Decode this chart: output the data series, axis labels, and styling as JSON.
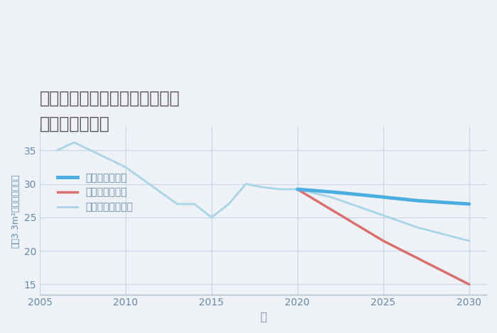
{
  "title_line1": "兵庫県姫路市白浜町宇佐崎北の",
  "title_line2": "土地の価格推移",
  "xlabel": "年",
  "ylabel": "坪（3.3m²）単価（万円）",
  "background_color": "#eef2f7",
  "plot_bg_color": "#eef2f7",
  "ylim": [
    13.5,
    38.5
  ],
  "xlim": [
    2005,
    2031
  ],
  "yticks": [
    15,
    20,
    25,
    30,
    35
  ],
  "xticks": [
    2005,
    2010,
    2015,
    2020,
    2025,
    2030
  ],
  "good_scenario": {
    "label": "グッドシナリオ",
    "color": "#4aaee0",
    "linewidth": 3.5,
    "x": [
      2020,
      2022,
      2024,
      2027,
      2030
    ],
    "y": [
      29.2,
      28.8,
      28.3,
      27.5,
      27.0
    ]
  },
  "bad_scenario": {
    "label": "バッドシナリオ",
    "color": "#d97070",
    "linewidth": 2.5,
    "x": [
      2020,
      2025,
      2030
    ],
    "y": [
      29.2,
      21.5,
      15.0
    ]
  },
  "normal_scenario": {
    "label": "ノーマルシナリオ",
    "color": "#a8d4e8",
    "linewidth": 2.0,
    "historical_x": [
      2006,
      2007,
      2010,
      2013,
      2014,
      2015,
      2016,
      2017,
      2018,
      2019,
      2020
    ],
    "historical_y": [
      35.0,
      36.2,
      32.5,
      27.0,
      27.0,
      25.0,
      27.0,
      30.0,
      29.5,
      29.2,
      29.2
    ],
    "future_x": [
      2020,
      2022,
      2025,
      2027,
      2030
    ],
    "future_y": [
      29.2,
      28.0,
      25.3,
      23.5,
      21.5
    ]
  },
  "grid_color": "#c5d5e5",
  "title_color": "#555555",
  "tick_color": "#6688aa",
  "axis_line_color": "#aabbcc"
}
